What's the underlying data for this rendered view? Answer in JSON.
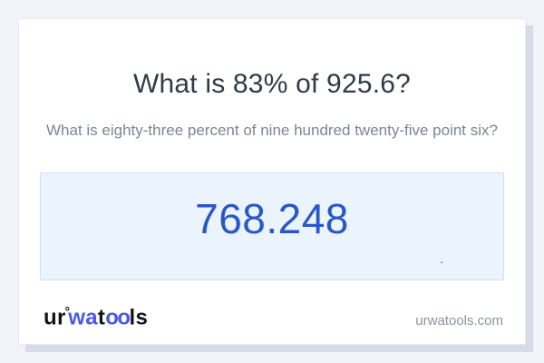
{
  "card": {
    "title": "What is 83% of 925.6?",
    "subtitle": "What is eighty-three percent of nine hundred twenty-five point six?",
    "answer": "768.248",
    "stray_dot": ".",
    "logo": {
      "ur": "ur",
      "ring": "°",
      "wa": "wa",
      "t": "t",
      "oo": "oo",
      "ls": "ls"
    },
    "footer": {
      "domain": "urwatools.com"
    }
  },
  "colors": {
    "page_background": "#f1f3f8",
    "card_background": "#ffffff",
    "card_shadow": "#d6dbe8",
    "title_text": "#2f3b48",
    "subtitle_text": "#7d8594",
    "answer_box_background": "#ebf3fc",
    "answer_box_border": "#cfe1f0",
    "answer_accent": "#2857c8",
    "logo_black": "#141414",
    "logo_blue": "#4a5ae4",
    "footer_text": "#8b93a2"
  }
}
